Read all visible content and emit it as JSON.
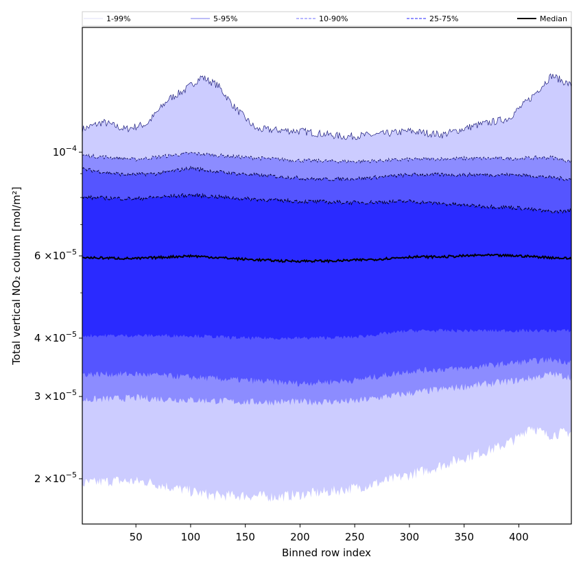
{
  "chart_data": {
    "type": "area",
    "xlabel": "Binned row index",
    "ylabel": "Total vertical NO₂ column [mol/m²]",
    "yscale": "log",
    "xlim": [
      1,
      448
    ],
    "ylim": [
      1.6e-05,
      0.000185
    ],
    "x_ticks": [
      50,
      100,
      150,
      200,
      250,
      300,
      350,
      400
    ],
    "y_tick_labels": [
      {
        "value": 2e-05,
        "mant": "2",
        "times": "×10",
        "exp": "−5"
      },
      {
        "value": 3e-05,
        "mant": "3",
        "times": "×10",
        "exp": "−5"
      },
      {
        "value": 4e-05,
        "mant": "4",
        "times": "×10",
        "exp": "−5"
      },
      {
        "value": 6e-05,
        "mant": "6",
        "times": "×10",
        "exp": "−5"
      },
      {
        "value": 0.0001,
        "mant": "",
        "times": "10",
        "exp": "−4"
      }
    ],
    "y_minor_ticks": [
      5e-05,
      7e-05,
      8e-05,
      9e-05
    ],
    "legend_position": "top",
    "legend": [
      {
        "label": "1-99%",
        "color": "#d4d4f5",
        "style": "solid"
      },
      {
        "label": "5-95%",
        "color": "#9494f2",
        "style": "solid"
      },
      {
        "label": "10-90%",
        "color": "#8c8cff",
        "style": "dashed"
      },
      {
        "label": "25-75%",
        "color": "#4f4fff",
        "style": "dashed"
      },
      {
        "label": "Median",
        "color": "#000000",
        "style": "solid"
      }
    ],
    "bands": [
      {
        "name": "1-99%",
        "color": "#ccccff",
        "upper": [
          [
            1,
            0.000112
          ],
          [
            20,
            0.000116
          ],
          [
            40,
            0.000112
          ],
          [
            60,
            0.000115
          ],
          [
            80,
            0.00013
          ],
          [
            95,
            0.000136
          ],
          [
            110,
            0.000145
          ],
          [
            125,
            0.000139
          ],
          [
            140,
            0.000125
          ],
          [
            160,
            0.000112
          ],
          [
            200,
            0.000111
          ],
          [
            240,
            0.000108
          ],
          [
            270,
            0.000109
          ],
          [
            300,
            0.000111
          ],
          [
            330,
            0.000109
          ],
          [
            360,
            0.000114
          ],
          [
            390,
            0.000118
          ],
          [
            410,
            0.00013
          ],
          [
            430,
            0.000146
          ],
          [
            448,
            0.000139
          ]
        ],
        "lower": [
          [
            1,
            1.95e-05
          ],
          [
            30,
            1.98e-05
          ],
          [
            60,
            1.97e-05
          ],
          [
            90,
            1.9e-05
          ],
          [
            120,
            1.84e-05
          ],
          [
            150,
            1.84e-05
          ],
          [
            180,
            1.83e-05
          ],
          [
            200,
            1.85e-05
          ],
          [
            230,
            1.88e-05
          ],
          [
            260,
            1.93e-05
          ],
          [
            290,
            2.01e-05
          ],
          [
            320,
            2.1e-05
          ],
          [
            350,
            2.22e-05
          ],
          [
            380,
            2.33e-05
          ],
          [
            400,
            2.45e-05
          ],
          [
            410,
            2.6e-05
          ],
          [
            425,
            2.48e-05
          ],
          [
            448,
            2.52e-05
          ]
        ]
      },
      {
        "name": "5-95%",
        "color": "#8c8cff",
        "upper": [
          [
            1,
            9.85e-05
          ],
          [
            50,
            9.65e-05
          ],
          [
            100,
            9.95e-05
          ],
          [
            150,
            9.75e-05
          ],
          [
            200,
            9.6e-05
          ],
          [
            250,
            9.55e-05
          ],
          [
            300,
            9.65e-05
          ],
          [
            350,
            9.7e-05
          ],
          [
            400,
            9.7e-05
          ],
          [
            430,
            9.75e-05
          ],
          [
            448,
            9.55e-05
          ]
        ],
        "lower": [
          [
            1,
            2.95e-05
          ],
          [
            50,
            2.98e-05
          ],
          [
            100,
            2.95e-05
          ],
          [
            150,
            2.92e-05
          ],
          [
            200,
            2.92e-05
          ],
          [
            250,
            2.93e-05
          ],
          [
            300,
            3.05e-05
          ],
          [
            350,
            3.15e-05
          ],
          [
            400,
            3.25e-05
          ],
          [
            430,
            3.35e-05
          ],
          [
            448,
            3.3e-05
          ]
        ]
      },
      {
        "name": "10-90%",
        "color": "#5555ff",
        "upper": [
          [
            1,
            9.2e-05
          ],
          [
            40,
            8.95e-05
          ],
          [
            70,
            9e-05
          ],
          [
            100,
            9.25e-05
          ],
          [
            130,
            9.05e-05
          ],
          [
            170,
            8.9e-05
          ],
          [
            220,
            8.75e-05
          ],
          [
            260,
            8.8e-05
          ],
          [
            300,
            8.95e-05
          ],
          [
            350,
            8.95e-05
          ],
          [
            400,
            8.95e-05
          ],
          [
            448,
            8.75e-05
          ]
        ],
        "lower": [
          [
            1,
            3.35e-05
          ],
          [
            50,
            3.35e-05
          ],
          [
            100,
            3.3e-05
          ],
          [
            150,
            3.25e-05
          ],
          [
            200,
            3.2e-05
          ],
          [
            250,
            3.25e-05
          ],
          [
            300,
            3.4e-05
          ],
          [
            350,
            3.45e-05
          ],
          [
            400,
            3.55e-05
          ],
          [
            430,
            3.6e-05
          ],
          [
            448,
            3.55e-05
          ]
        ]
      },
      {
        "name": "25-75%",
        "color": "#2a2aff",
        "upper": [
          [
            1,
            8e-05
          ],
          [
            50,
            7.95e-05
          ],
          [
            100,
            8.1e-05
          ],
          [
            150,
            7.95e-05
          ],
          [
            200,
            7.85e-05
          ],
          [
            250,
            7.8e-05
          ],
          [
            300,
            7.85e-05
          ],
          [
            350,
            7.7e-05
          ],
          [
            400,
            7.6e-05
          ],
          [
            430,
            7.45e-05
          ],
          [
            448,
            7.5e-05
          ]
        ],
        "lower": [
          [
            1,
            4.05e-05
          ],
          [
            50,
            4.05e-05
          ],
          [
            100,
            4.05e-05
          ],
          [
            150,
            4e-05
          ],
          [
            200,
            4e-05
          ],
          [
            250,
            4.02e-05
          ],
          [
            300,
            4.15e-05
          ],
          [
            350,
            4.15e-05
          ],
          [
            400,
            4.15e-05
          ],
          [
            448,
            4.15e-05
          ]
        ]
      }
    ],
    "median": {
      "name": "Median",
      "color": "#000000",
      "points": [
        [
          1,
          5.95e-05
        ],
        [
          50,
          5.92e-05
        ],
        [
          100,
          6e-05
        ],
        [
          150,
          5.9e-05
        ],
        [
          185,
          5.85e-05
        ],
        [
          230,
          5.85e-05
        ],
        [
          270,
          5.9e-05
        ],
        [
          300,
          5.97e-05
        ],
        [
          330,
          5.97e-05
        ],
        [
          365,
          6.02e-05
        ],
        [
          400,
          6e-05
        ],
        [
          448,
          5.92e-05
        ]
      ]
    }
  }
}
